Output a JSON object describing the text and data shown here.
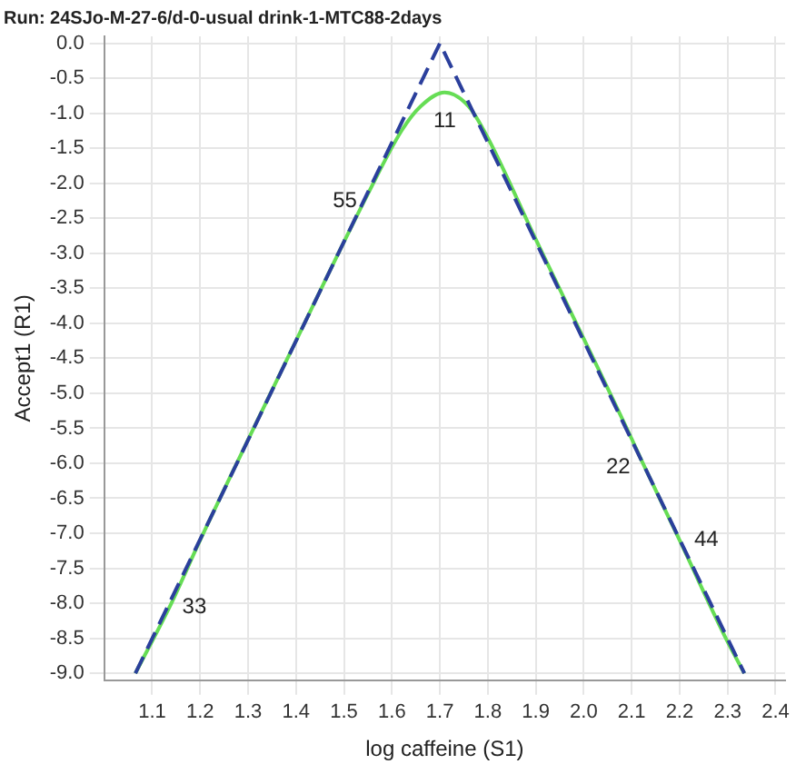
{
  "chart_data": {
    "type": "line",
    "title": "Run: 24SJo-M-27-6/d-0-usual drink-1-MTC88-2days",
    "xlabel": "log caffeine (S1)",
    "ylabel": "Accept1 (R1)",
    "series": [
      {
        "type": "line",
        "color": "#2b3f9c",
        "line_style": "dashed",
        "x": [
          1.065,
          1.7,
          2.335
        ],
        "values": [
          -9.0,
          0.0,
          -9.0
        ]
      },
      {
        "type": "line",
        "color": "#66dd55",
        "line_style": "solid",
        "x": [
          1.065,
          1.14,
          1.2,
          1.4,
          1.55,
          1.62,
          1.66,
          1.71,
          1.76,
          1.8,
          1.9,
          2.1,
          2.12,
          2.2,
          2.3,
          2.335
        ],
        "values": [
          -9.0,
          -8.0,
          -7.1,
          -4.25,
          -2.15,
          -1.25,
          -0.9,
          -0.7,
          -0.9,
          -1.35,
          -2.8,
          -5.65,
          -5.95,
          -7.1,
          -8.55,
          -9.0
        ]
      }
    ],
    "annotations": [
      {
        "text": "11",
        "x": 1.71,
        "y": -0.7
      },
      {
        "text": "55",
        "x": 1.55,
        "y": -2.15
      },
      {
        "text": "22",
        "x": 2.12,
        "y": -5.95
      },
      {
        "text": "44",
        "x": 2.2,
        "y": -7.1
      },
      {
        "text": "33",
        "x": 1.14,
        "y": -8.0
      }
    ],
    "xlim": [
      1.0,
      2.42
    ],
    "xticks": [
      1.1,
      1.2,
      1.3,
      1.4,
      1.5,
      1.6,
      1.7,
      1.8,
      1.9,
      {
        "value": 2.0,
        "label": "2.0"
      },
      2.1,
      2.2,
      2.3,
      2.4
    ],
    "ylim": [
      -9.1,
      0.1
    ],
    "yticks": [
      {
        "value": 0,
        "label": "0.0"
      },
      -0.5,
      {
        "value": -1,
        "label": "-1.0"
      },
      -1.5,
      {
        "value": -2,
        "label": "-2.0"
      },
      -2.5,
      {
        "value": -3,
        "label": "-3.0"
      },
      -3.5,
      {
        "value": -4,
        "label": "-4.0"
      },
      -4.5,
      {
        "value": -5,
        "label": "-5.0"
      },
      -5.5,
      {
        "value": -6,
        "label": "-6.0"
      },
      -6.5,
      {
        "value": -7,
        "label": "-7.0"
      },
      -7.5,
      {
        "value": -8,
        "label": "-8.0"
      },
      -8.5,
      {
        "value": -9,
        "label": "-9.0"
      }
    ],
    "grid": true,
    "legend": false,
    "marker": "none"
  }
}
